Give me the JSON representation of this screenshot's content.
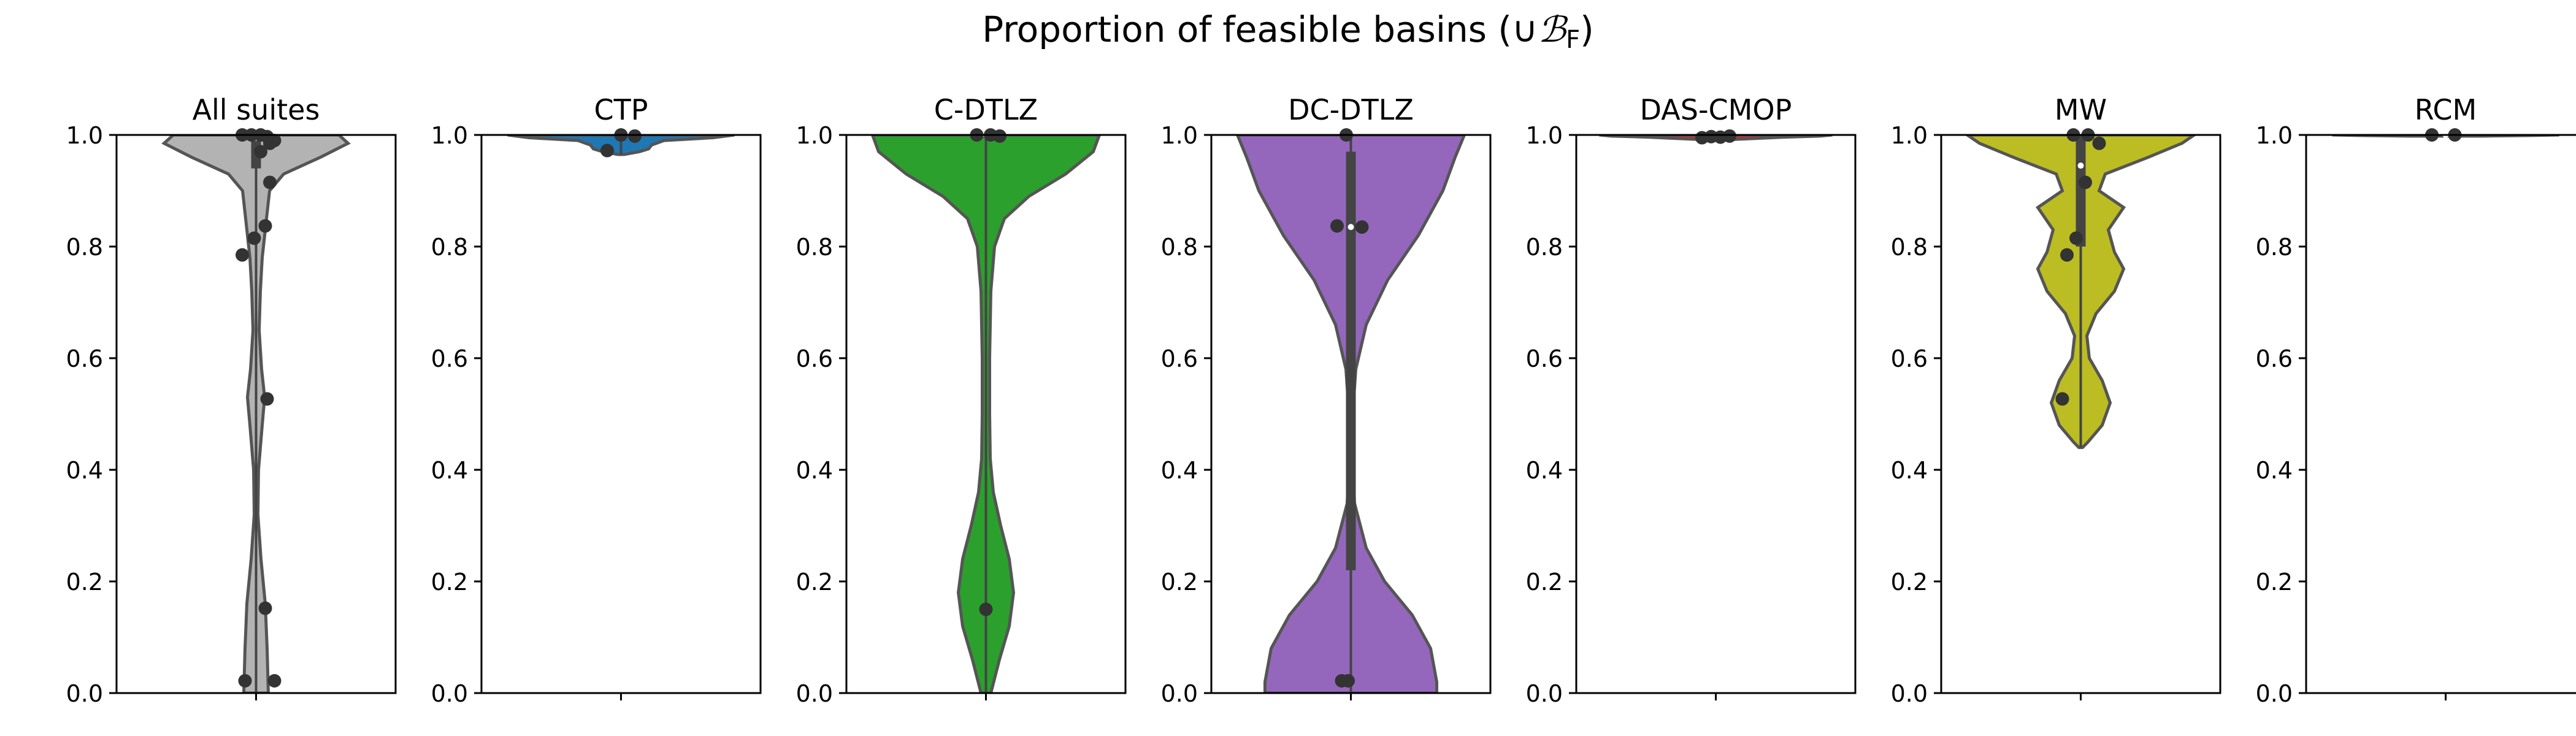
{
  "figure": {
    "title_prefix": "Proportion of feasible basins (∪",
    "title_symbol": "ℬ",
    "title_sub": "F",
    "title_suffix": ")"
  },
  "chart_data": [
    {
      "type": "violin",
      "title": "All suites",
      "ylim": [
        0,
        1
      ],
      "yticks": [
        "0.0",
        "0.2",
        "0.4",
        "0.6",
        "0.8",
        "1.0"
      ],
      "color": "#b3b3b3",
      "median": 0.995,
      "quartiles": [
        0.94,
        1.0
      ],
      "points": [
        {
          "x": -0.15,
          "y": 1.0
        },
        {
          "x": -0.05,
          "y": 1.0
        },
        {
          "x": 0.05,
          "y": 1.0
        },
        {
          "x": 0.12,
          "y": 0.997
        },
        {
          "x": 0.2,
          "y": 0.99
        },
        {
          "x": 0.05,
          "y": 0.97
        },
        {
          "x": 0.15,
          "y": 0.985
        },
        {
          "x": 0.15,
          "y": 0.915
        },
        {
          "x": 0.1,
          "y": 0.837
        },
        {
          "x": -0.02,
          "y": 0.815
        },
        {
          "x": -0.15,
          "y": 0.785
        },
        {
          "x": 0.12,
          "y": 0.527
        },
        {
          "x": 0.1,
          "y": 0.152
        },
        {
          "x": -0.12,
          "y": 0.022
        },
        {
          "x": 0.2,
          "y": 0.022
        }
      ]
    },
    {
      "type": "violin",
      "title": "CTP",
      "ylim": [
        0,
        1
      ],
      "yticks": [
        "0.0",
        "0.2",
        "0.4",
        "0.6",
        "0.8",
        "1.0"
      ],
      "color": "#1f77b4",
      "median": 1.0,
      "quartiles": [
        0.99,
        1.0
      ],
      "points": [
        {
          "x": -0.15,
          "y": 0.972
        },
        {
          "x": 0.0,
          "y": 1.0
        },
        {
          "x": 0.15,
          "y": 0.998
        }
      ]
    },
    {
      "type": "violin",
      "title": "C-DTLZ",
      "ylim": [
        0,
        1
      ],
      "yticks": [
        "0.0",
        "0.2",
        "0.4",
        "0.6",
        "0.8",
        "1.0"
      ],
      "color": "#2ca02c",
      "median": 1.0,
      "quartiles": [
        0.995,
        1.0
      ],
      "points": [
        {
          "x": -0.1,
          "y": 1.0
        },
        {
          "x": 0.05,
          "y": 1.0
        },
        {
          "x": 0.15,
          "y": 0.998
        },
        {
          "x": 0.0,
          "y": 0.15
        }
      ]
    },
    {
      "type": "violin",
      "title": "DC-DTLZ",
      "ylim": [
        0,
        1
      ],
      "yticks": [
        "0.0",
        "0.2",
        "0.4",
        "0.6",
        "0.8",
        "1.0"
      ],
      "color": "#9467bd",
      "median": 0.835,
      "quartiles": [
        0.22,
        0.97
      ],
      "points": [
        {
          "x": -0.05,
          "y": 1.0
        },
        {
          "x": -0.15,
          "y": 0.837
        },
        {
          "x": 0.12,
          "y": 0.835
        },
        {
          "x": -0.1,
          "y": 0.022
        },
        {
          "x": -0.03,
          "y": 0.022
        }
      ]
    },
    {
      "type": "violin",
      "title": "DAS-CMOP",
      "ylim": [
        0,
        1
      ],
      "yticks": [
        "0.0",
        "0.2",
        "0.4",
        "0.6",
        "0.8",
        "1.0"
      ],
      "color": "#d62728",
      "median": 0.998,
      "quartiles": [
        0.995,
        1.0
      ],
      "points": [
        {
          "x": -0.15,
          "y": 0.995
        },
        {
          "x": -0.05,
          "y": 0.997
        },
        {
          "x": 0.05,
          "y": 0.996
        },
        {
          "x": 0.15,
          "y": 0.998
        }
      ]
    },
    {
      "type": "violin",
      "title": "MW",
      "ylim": [
        0,
        1
      ],
      "yticks": [
        "0.0",
        "0.2",
        "0.4",
        "0.6",
        "0.8",
        "1.0"
      ],
      "color": "#bcbd22",
      "median": 0.945,
      "quartiles": [
        0.8,
        1.0
      ],
      "points": [
        {
          "x": -0.08,
          "y": 1.0
        },
        {
          "x": 0.08,
          "y": 1.0
        },
        {
          "x": 0.2,
          "y": 0.985
        },
        {
          "x": 0.05,
          "y": 0.915
        },
        {
          "x": -0.05,
          "y": 0.815
        },
        {
          "x": -0.15,
          "y": 0.785
        },
        {
          "x": -0.2,
          "y": 0.527
        }
      ]
    },
    {
      "type": "violin",
      "title": "RCM",
      "ylim": [
        0,
        1
      ],
      "yticks": [
        "0.0",
        "0.2",
        "0.4",
        "0.6",
        "0.8",
        "1.0"
      ],
      "color": "#17becf",
      "median": 1.0,
      "quartiles": [
        1.0,
        1.0
      ],
      "points": [
        {
          "x": -0.15,
          "y": 1.0
        },
        {
          "x": 0.1,
          "y": 1.0
        }
      ]
    }
  ]
}
